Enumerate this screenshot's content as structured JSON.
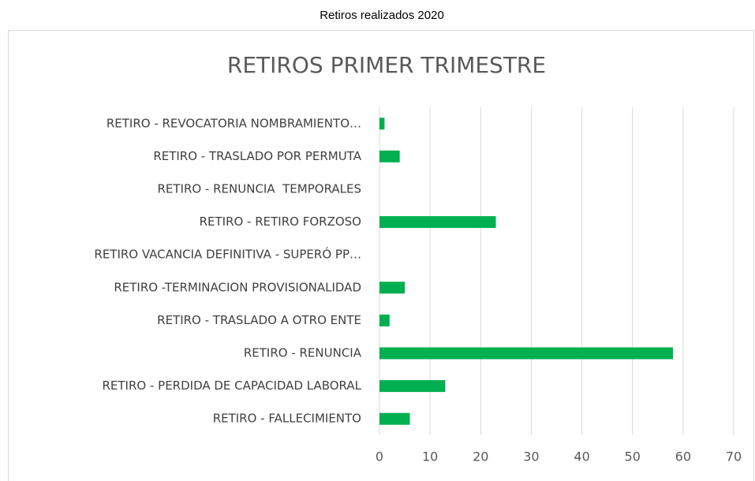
{
  "heading": "Retiros realizados 2020",
  "chart_data": {
    "type": "hbar",
    "title": "RETIROS PRIMER TRIMESTRE",
    "categories": [
      "RETIRO - REVOCATORIA NOMBRAMIENTO…",
      "RETIRO - TRASLADO POR PERMUTA",
      "RETIRO - RENUNCIA  TEMPORALES",
      "RETIRO - RETIRO FORZOSO",
      "RETIRO VACANCIA DEFINITIVA - SUPERÓ PP…",
      "RETIRO -TERMINACION PROVISIONALIDAD",
      "RETIRO - TRASLADO A OTRO ENTE",
      "RETIRO - RENUNCIA",
      "RETIRO - PERDIDA DE CAPACIDAD LABORAL",
      "RETIRO - FALLECIMIENTO"
    ],
    "values": [
      1,
      4,
      0,
      23,
      0,
      5,
      2,
      58,
      13,
      6
    ],
    "color": "#00b050",
    "xlim": [
      0,
      70
    ],
    "xticks": [
      0,
      10,
      20,
      30,
      40,
      50,
      60,
      70
    ],
    "grid": true
  }
}
